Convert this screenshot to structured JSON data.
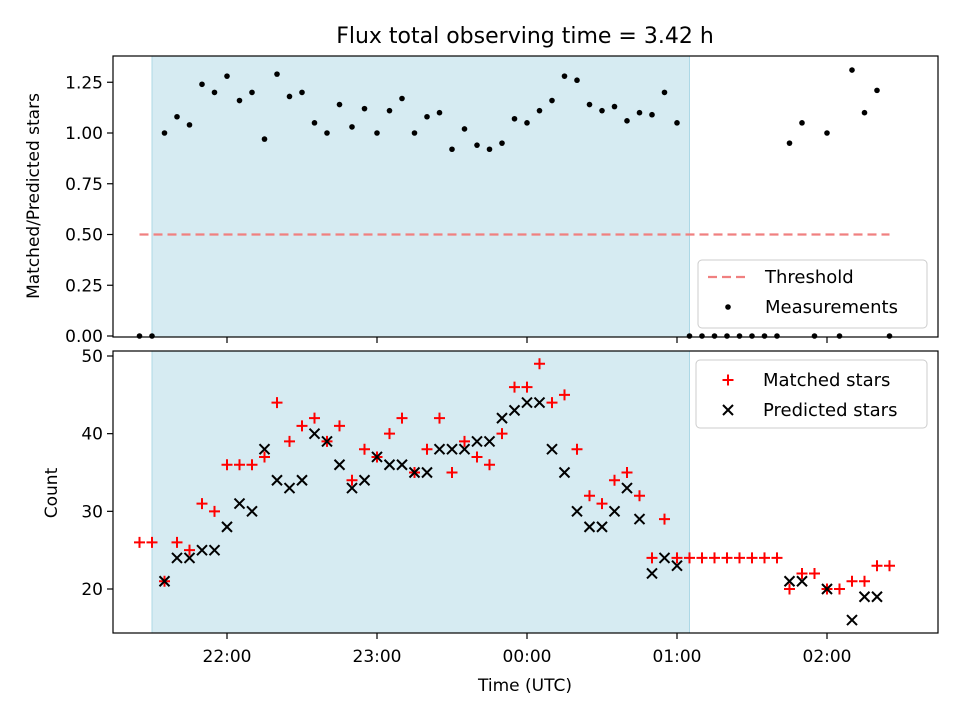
{
  "chart_data": [
    {
      "type": "scatter",
      "title": "Flux total observing time = 3.42 h",
      "xlabel": "",
      "ylabel": "Matched/Predicted stars",
      "ylim": [
        0,
        1.375
      ],
      "yticks": [
        "0.00",
        "0.25",
        "0.50",
        "0.75",
        "1.00",
        "1.25"
      ],
      "shaded_span": [
        "21:30",
        "01:05"
      ],
      "threshold": {
        "name": "Threshold",
        "value": 0.5,
        "x_start": "21:25",
        "x_end": "02:25",
        "color": "#f08080"
      },
      "legend": {
        "placement": "lower-right",
        "entries": [
          "Threshold",
          "Measurements"
        ]
      },
      "series": [
        {
          "name": "Measurements",
          "color": "#000000",
          "points": [
            [
              "21:25",
              0.0
            ],
            [
              "21:30",
              0.0
            ],
            [
              "21:35",
              1.0
            ],
            [
              "21:40",
              1.08
            ],
            [
              "21:45",
              1.04
            ],
            [
              "21:50",
              1.24
            ],
            [
              "21:55",
              1.2
            ],
            [
              "22:00",
              1.28
            ],
            [
              "22:05",
              1.16
            ],
            [
              "22:10",
              1.2
            ],
            [
              "22:15",
              0.97
            ],
            [
              "22:20",
              1.29
            ],
            [
              "22:25",
              1.18
            ],
            [
              "22:30",
              1.2
            ],
            [
              "22:35",
              1.05
            ],
            [
              "22:40",
              1.0
            ],
            [
              "22:45",
              1.14
            ],
            [
              "22:50",
              1.03
            ],
            [
              "22:55",
              1.12
            ],
            [
              "23:00",
              1.0
            ],
            [
              "23:05",
              1.11
            ],
            [
              "23:10",
              1.17
            ],
            [
              "23:15",
              1.0
            ],
            [
              "23:20",
              1.08
            ],
            [
              "23:25",
              1.1
            ],
            [
              "23:30",
              0.92
            ],
            [
              "23:35",
              1.02
            ],
            [
              "23:40",
              0.94
            ],
            [
              "23:45",
              0.92
            ],
            [
              "23:50",
              0.95
            ],
            [
              "23:55",
              1.07
            ],
            [
              "00:00",
              1.05
            ],
            [
              "00:05",
              1.11
            ],
            [
              "00:10",
              1.16
            ],
            [
              "00:15",
              1.28
            ],
            [
              "00:20",
              1.26
            ],
            [
              "00:25",
              1.14
            ],
            [
              "00:30",
              1.11
            ],
            [
              "00:35",
              1.13
            ],
            [
              "00:40",
              1.06
            ],
            [
              "00:45",
              1.1
            ],
            [
              "00:50",
              1.09
            ],
            [
              "00:55",
              1.2
            ],
            [
              "01:00",
              1.05
            ],
            [
              "01:05",
              0.0
            ],
            [
              "01:10",
              0.0
            ],
            [
              "01:15",
              0.0
            ],
            [
              "01:20",
              0.0
            ],
            [
              "01:25",
              0.0
            ],
            [
              "01:30",
              0.0
            ],
            [
              "01:35",
              0.0
            ],
            [
              "01:40",
              0.0
            ],
            [
              "01:45",
              0.95
            ],
            [
              "01:50",
              1.05
            ],
            [
              "01:55",
              0.0
            ],
            [
              "02:00",
              1.0
            ],
            [
              "02:05",
              0.0
            ],
            [
              "02:10",
              1.31
            ],
            [
              "02:15",
              1.1
            ],
            [
              "02:20",
              1.21
            ],
            [
              "02:25",
              0.0
            ]
          ]
        }
      ]
    },
    {
      "type": "scatter",
      "xlabel": "Time (UTC)",
      "ylabel": "Count",
      "ylim": [
        14.5,
        51
      ],
      "yticks": [
        "20",
        "30",
        "40",
        "50"
      ],
      "xticks": [
        "22:00",
        "23:00",
        "00:00",
        "01:00",
        "02:00"
      ],
      "shaded_span": [
        "21:30",
        "01:05"
      ],
      "legend": {
        "placement": "top-right",
        "entries": [
          "Matched stars",
          "Predicted stars"
        ]
      },
      "series": [
        {
          "name": "Matched stars",
          "marker": "+",
          "color": "#ff0000",
          "points": [
            [
              "21:25",
              26
            ],
            [
              "21:30",
              26
            ],
            [
              "21:35",
              21
            ],
            [
              "21:40",
              26
            ],
            [
              "21:45",
              25
            ],
            [
              "21:50",
              31
            ],
            [
              "21:55",
              30
            ],
            [
              "22:00",
              36
            ],
            [
              "22:05",
              36
            ],
            [
              "22:10",
              36
            ],
            [
              "22:15",
              37
            ],
            [
              "22:20",
              44
            ],
            [
              "22:25",
              39
            ],
            [
              "22:30",
              41
            ],
            [
              "22:35",
              42
            ],
            [
              "22:40",
              39
            ],
            [
              "22:45",
              41
            ],
            [
              "22:50",
              34
            ],
            [
              "22:55",
              38
            ],
            [
              "23:00",
              37
            ],
            [
              "23:05",
              40
            ],
            [
              "23:10",
              42
            ],
            [
              "23:15",
              35
            ],
            [
              "23:20",
              38
            ],
            [
              "23:25",
              42
            ],
            [
              "23:30",
              35
            ],
            [
              "23:35",
              39
            ],
            [
              "23:40",
              37
            ],
            [
              "23:45",
              36
            ],
            [
              "23:50",
              40
            ],
            [
              "23:55",
              46
            ],
            [
              "00:00",
              46
            ],
            [
              "00:05",
              49
            ],
            [
              "00:10",
              44
            ],
            [
              "00:15",
              45
            ],
            [
              "00:20",
              38
            ],
            [
              "00:25",
              32
            ],
            [
              "00:30",
              31
            ],
            [
              "00:35",
              34
            ],
            [
              "00:40",
              35
            ],
            [
              "00:45",
              32
            ],
            [
              "00:50",
              24
            ],
            [
              "00:55",
              29
            ],
            [
              "01:00",
              24
            ],
            [
              "01:05",
              24
            ],
            [
              "01:10",
              24
            ],
            [
              "01:15",
              24
            ],
            [
              "01:20",
              24
            ],
            [
              "01:25",
              24
            ],
            [
              "01:30",
              24
            ],
            [
              "01:35",
              24
            ],
            [
              "01:40",
              24
            ],
            [
              "01:45",
              20
            ],
            [
              "01:50",
              22
            ],
            [
              "01:55",
              22
            ],
            [
              "02:00",
              20
            ],
            [
              "02:05",
              20
            ],
            [
              "02:10",
              21
            ],
            [
              "02:15",
              21
            ],
            [
              "02:20",
              23
            ],
            [
              "02:25",
              23
            ]
          ]
        },
        {
          "name": "Predicted stars",
          "marker": "x",
          "color": "#000000",
          "points": [
            [
              "21:35",
              21
            ],
            [
              "21:40",
              24
            ],
            [
              "21:45",
              24
            ],
            [
              "21:50",
              25
            ],
            [
              "21:55",
              25
            ],
            [
              "22:00",
              28
            ],
            [
              "22:05",
              31
            ],
            [
              "22:10",
              30
            ],
            [
              "22:15",
              38
            ],
            [
              "22:20",
              34
            ],
            [
              "22:25",
              33
            ],
            [
              "22:30",
              34
            ],
            [
              "22:35",
              40
            ],
            [
              "22:40",
              39
            ],
            [
              "22:45",
              36
            ],
            [
              "22:50",
              33
            ],
            [
              "22:55",
              34
            ],
            [
              "23:00",
              37
            ],
            [
              "23:05",
              36
            ],
            [
              "23:10",
              36
            ],
            [
              "23:15",
              35
            ],
            [
              "23:20",
              35
            ],
            [
              "23:25",
              38
            ],
            [
              "23:30",
              38
            ],
            [
              "23:35",
              38
            ],
            [
              "23:40",
              39
            ],
            [
              "23:45",
              39
            ],
            [
              "23:50",
              42
            ],
            [
              "23:55",
              43
            ],
            [
              "00:00",
              44
            ],
            [
              "00:05",
              44
            ],
            [
              "00:10",
              38
            ],
            [
              "00:15",
              35
            ],
            [
              "00:20",
              30
            ],
            [
              "00:25",
              28
            ],
            [
              "00:30",
              28
            ],
            [
              "00:35",
              30
            ],
            [
              "00:40",
              33
            ],
            [
              "00:45",
              29
            ],
            [
              "00:50",
              22
            ],
            [
              "00:55",
              24
            ],
            [
              "01:00",
              23
            ],
            [
              "01:45",
              21
            ],
            [
              "01:50",
              21
            ],
            [
              "02:00",
              20
            ],
            [
              "02:10",
              16
            ],
            [
              "02:15",
              19
            ],
            [
              "02:20",
              19
            ]
          ]
        }
      ]
    }
  ],
  "colors": {
    "shade": "#add8e6",
    "threshold": "#f08080",
    "matched": "#ff0000",
    "predicted": "#000000",
    "measurements": "#000000"
  }
}
